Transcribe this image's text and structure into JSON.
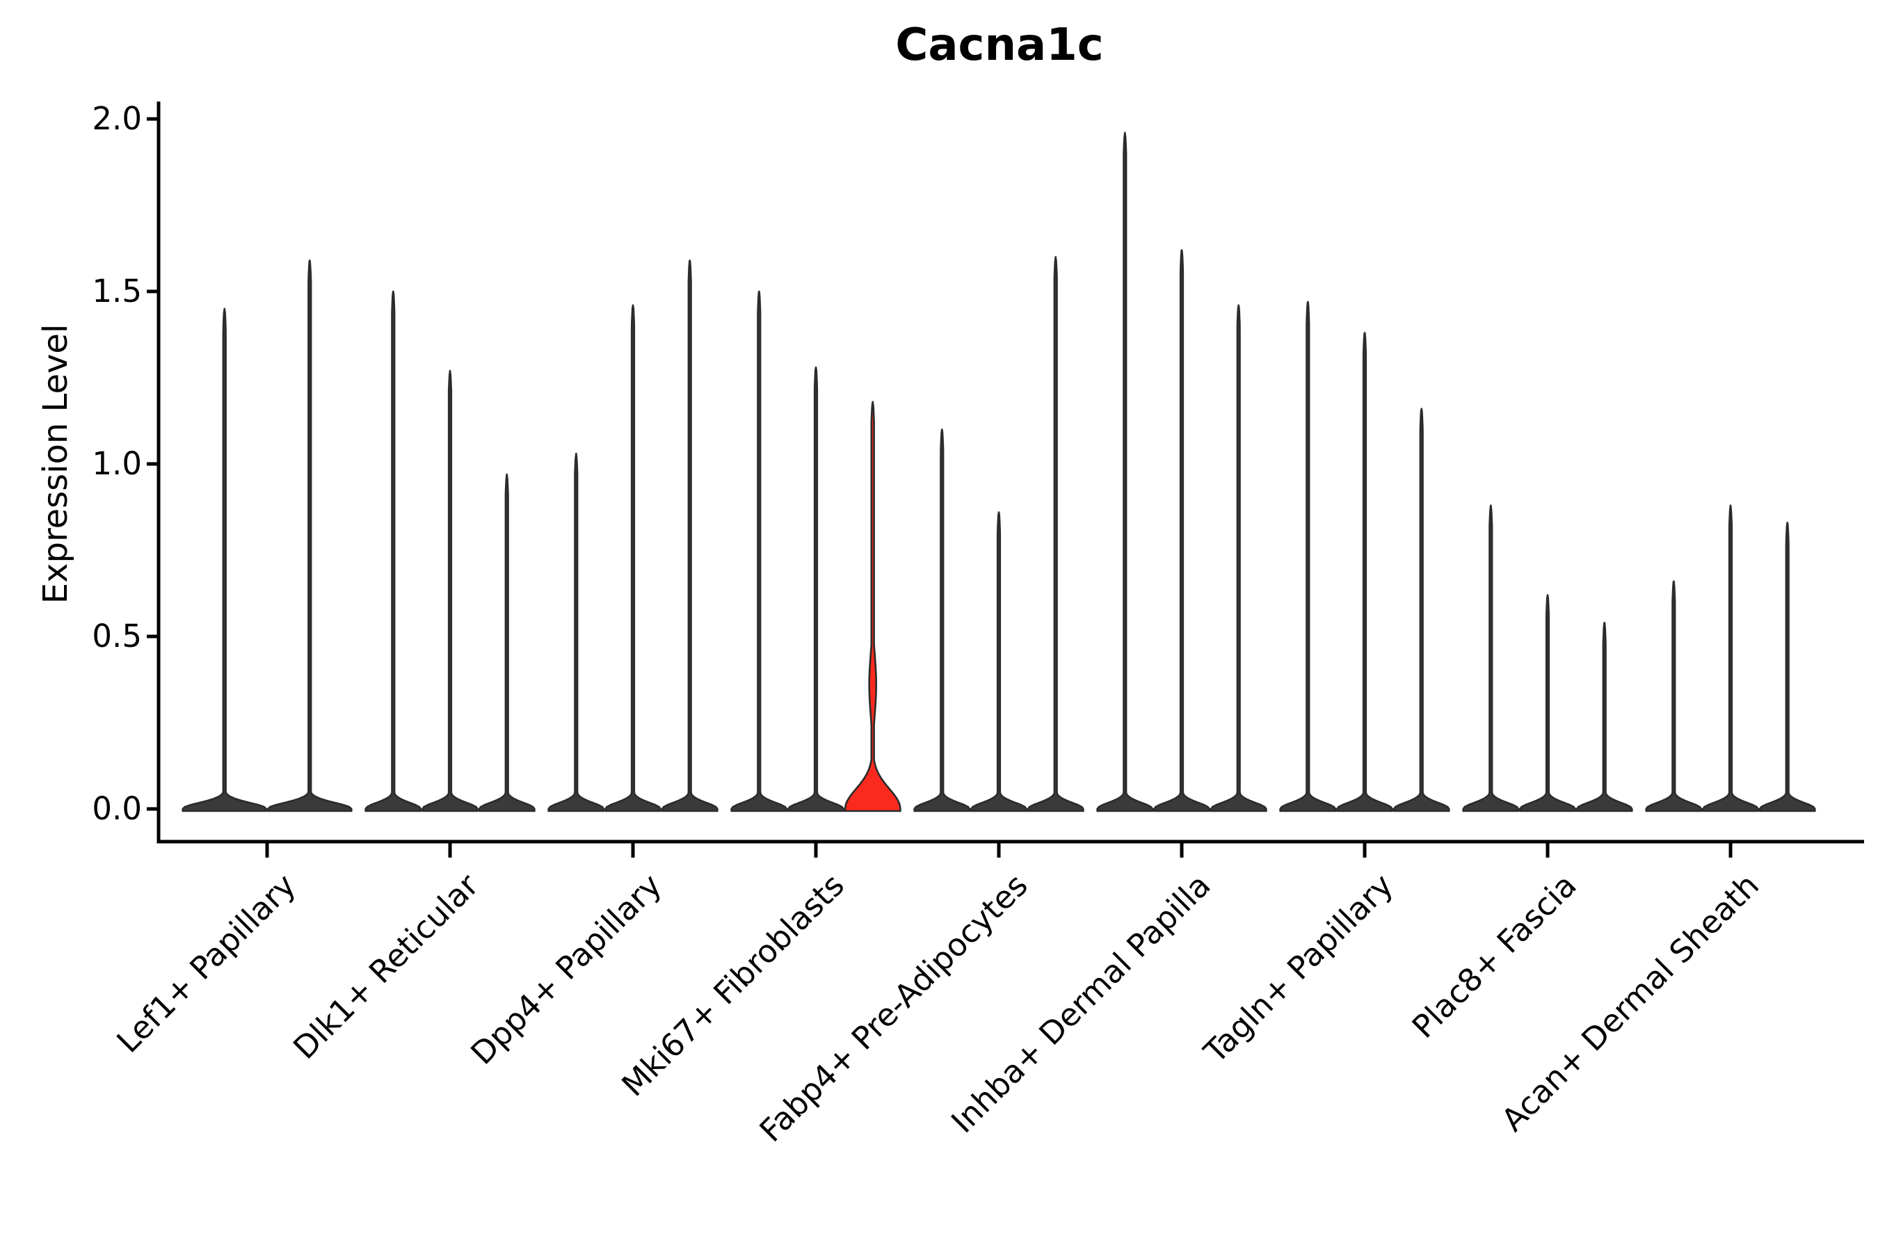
{
  "title": "Cacna1c",
  "y_axis": {
    "label": "Expression Level",
    "ticks": [
      "0.0",
      "0.5",
      "1.0",
      "1.5",
      "2.0"
    ]
  },
  "colors": {
    "background": "#ffffff",
    "axis": "#000000",
    "violin_fill": "#3a3a3a",
    "violin_stroke": "#2b2b2b",
    "highlight_fill": "#fa2b1e"
  },
  "chart_data": {
    "type": "violin",
    "title": "Cacna1c",
    "xlabel": "",
    "ylabel": "Expression Level",
    "ylim": [
      0,
      2.05
    ],
    "yticks": [
      0.0,
      0.5,
      1.0,
      1.5,
      2.0
    ],
    "grid": false,
    "legend": "none",
    "categories": [
      "Lef1+ Papillary",
      "Dlk1+ Reticular",
      "Dpp4+ Papillary",
      "Mki67+ Fibroblasts",
      "Fabp4+ Pre-Adipocytes",
      "Inhba+ Dermal Papilla",
      "Tagln+ Papillary",
      "Plac8+ Fascia",
      "Acan+ Dermal Sheath"
    ],
    "groups": [
      {
        "label": "Lef1+ Papillary",
        "violins": [
          {
            "max": 1.45
          },
          {
            "max": 1.59
          }
        ]
      },
      {
        "label": "Dlk1+ Reticular",
        "violins": [
          {
            "max": 1.5
          },
          {
            "max": 1.27
          },
          {
            "max": 0.97
          }
        ]
      },
      {
        "label": "Dpp4+ Papillary",
        "violins": [
          {
            "max": 1.03
          },
          {
            "max": 1.46
          },
          {
            "max": 1.59
          }
        ]
      },
      {
        "label": "Mki67+ Fibroblasts",
        "violins": [
          {
            "max": 1.5
          },
          {
            "max": 1.28
          },
          {
            "max": 1.18,
            "highlight": true,
            "bulge_center": 0.36
          }
        ]
      },
      {
        "label": "Fabp4+ Pre-Adipocytes",
        "violins": [
          {
            "max": 1.1
          },
          {
            "max": 0.86
          },
          {
            "max": 1.6
          }
        ]
      },
      {
        "label": "Inhba+ Dermal Papilla",
        "violins": [
          {
            "max": 1.96
          },
          {
            "max": 1.62
          },
          {
            "max": 1.46
          }
        ]
      },
      {
        "label": "Tagln+ Papillary",
        "violins": [
          {
            "max": 1.47
          },
          {
            "max": 1.38
          },
          {
            "max": 1.16
          }
        ]
      },
      {
        "label": "Plac8+ Fascia",
        "violins": [
          {
            "max": 0.88
          },
          {
            "max": 0.62
          },
          {
            "max": 0.54
          }
        ]
      },
      {
        "label": "Acan+ Dermal Sheath",
        "violins": [
          {
            "max": 0.66
          },
          {
            "max": 0.88
          },
          {
            "max": 0.83
          }
        ]
      }
    ],
    "highlight": {
      "group": "Mki67+ Fibroblasts",
      "violin_index": 2
    }
  }
}
